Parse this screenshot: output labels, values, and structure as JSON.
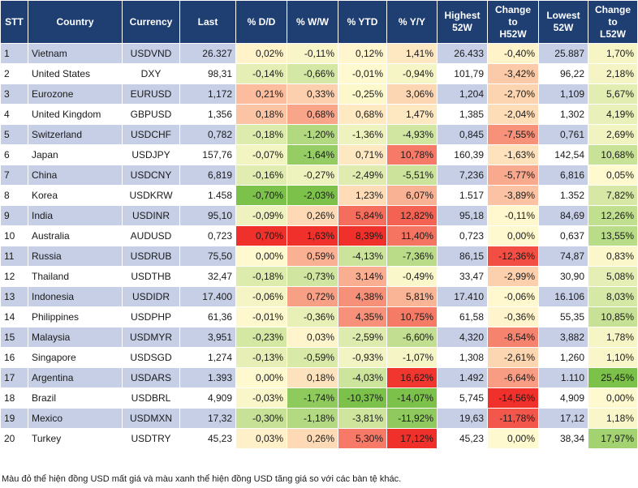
{
  "colors": {
    "header_bg": "#1f3f73",
    "row_blue": "#c6cfe6",
    "row_white": "#ffffff",
    "scale_red_strong": "#f0302a",
    "scale_green_strong": "#7cc24a",
    "scale_yellow": "#fff9cf"
  },
  "columns": [
    {
      "key": "stt",
      "label": "STT"
    },
    {
      "key": "country",
      "label": "Country"
    },
    {
      "key": "currency",
      "label": "Currency"
    },
    {
      "key": "last",
      "label": "Last"
    },
    {
      "key": "dd",
      "label": "% D/D"
    },
    {
      "key": "ww",
      "label": "% W/W"
    },
    {
      "key": "ytd",
      "label": "% YTD"
    },
    {
      "key": "yy",
      "label": "% Y/Y"
    },
    {
      "key": "high",
      "label": "Highest\n52W"
    },
    {
      "key": "chg_h",
      "label": "Change\nto\nH52W"
    },
    {
      "key": "low",
      "label": "Lowest\n52W"
    },
    {
      "key": "chg_l",
      "label": "Change\nto\nL52W"
    }
  ],
  "rows": [
    {
      "stt": "1",
      "country": "Vietnam",
      "currency": "USDVND",
      "last": "26.327",
      "dd": "0,02%",
      "ww": "-0,11%",
      "ytd": "0,12%",
      "yy": "1,41%",
      "high": "26.433",
      "chg_h": "-0,40%",
      "low": "25.887",
      "chg_l": "1,70%"
    },
    {
      "stt": "2",
      "country": "United States",
      "currency": "DXY",
      "last": "98,31",
      "dd": "-0,14%",
      "ww": "-0,66%",
      "ytd": "-0,01%",
      "yy": "-0,94%",
      "high": "101,79",
      "chg_h": "-3,42%",
      "low": "96,22",
      "chg_l": "2,18%"
    },
    {
      "stt": "3",
      "country": "Eurozone",
      "currency": "EURUSD",
      "last": "1,172",
      "dd": "0,21%",
      "ww": "0,33%",
      "ytd": "-0,25%",
      "yy": "3,06%",
      "high": "1,204",
      "chg_h": "-2,70%",
      "low": "1,109",
      "chg_l": "5,67%"
    },
    {
      "stt": "4",
      "country": "United Kingdom",
      "currency": "GBPUSD",
      "last": "1,356",
      "dd": "0,18%",
      "ww": "0,68%",
      "ytd": "0,68%",
      "yy": "1,47%",
      "high": "1,385",
      "chg_h": "-2,04%",
      "low": "1,302",
      "chg_l": "4,19%"
    },
    {
      "stt": "5",
      "country": "Switzerland",
      "currency": "USDCHF",
      "last": "0,782",
      "dd": "-0,18%",
      "ww": "-1,20%",
      "ytd": "-1,36%",
      "yy": "-4,93%",
      "high": "0,845",
      "chg_h": "-7,55%",
      "low": "0,761",
      "chg_l": "2,69%"
    },
    {
      "stt": "6",
      "country": "Japan",
      "currency": "USDJPY",
      "last": "157,76",
      "dd": "-0,07%",
      "ww": "-1,64%",
      "ytd": "0,71%",
      "yy": "10,78%",
      "high": "160,39",
      "chg_h": "-1,63%",
      "low": "142,54",
      "chg_l": "10,68%"
    },
    {
      "stt": "7",
      "country": "China",
      "currency": "USDCNY",
      "last": "6,819",
      "dd": "-0,16%",
      "ww": "-0,27%",
      "ytd": "-2,49%",
      "yy": "-5,51%",
      "high": "7,236",
      "chg_h": "-5,77%",
      "low": "6,816",
      "chg_l": "0,05%"
    },
    {
      "stt": "8",
      "country": "Korea",
      "currency": "USDKRW",
      "last": "1.458",
      "dd": "-0,70%",
      "ww": "-2,03%",
      "ytd": "1,23%",
      "yy": "6,07%",
      "high": "1.517",
      "chg_h": "-3,89%",
      "low": "1.352",
      "chg_l": "7,82%"
    },
    {
      "stt": "9",
      "country": "India",
      "currency": "USDINR",
      "last": "95,10",
      "dd": "-0,09%",
      "ww": "0,26%",
      "ytd": "5,84%",
      "yy": "12,82%",
      "high": "95,18",
      "chg_h": "-0,11%",
      "low": "84,69",
      "chg_l": "12,26%"
    },
    {
      "stt": "10",
      "country": "Australia",
      "currency": "AUDUSD",
      "last": "0,723",
      "dd": "0,70%",
      "ww": "1,63%",
      "ytd": "8,39%",
      "yy": "11,40%",
      "high": "0,723",
      "chg_h": "0,00%",
      "low": "0,637",
      "chg_l": "13,55%"
    },
    {
      "stt": "11",
      "country": "Russia",
      "currency": "USDRUB",
      "last": "75,50",
      "dd": "0,00%",
      "ww": "0,59%",
      "ytd": "-4,13%",
      "yy": "-7,36%",
      "high": "86,15",
      "chg_h": "-12,36%",
      "low": "74,87",
      "chg_l": "0,83%"
    },
    {
      "stt": "12",
      "country": "Thailand",
      "currency": "USDTHB",
      "last": "32,47",
      "dd": "-0,18%",
      "ww": "-0,73%",
      "ytd": "3,14%",
      "yy": "-0,49%",
      "high": "33,47",
      "chg_h": "-2,99%",
      "low": "30,90",
      "chg_l": "5,08%"
    },
    {
      "stt": "13",
      "country": "Indonesia",
      "currency": "USDIDR",
      "last": "17.400",
      "dd": "-0,06%",
      "ww": "0,72%",
      "ytd": "4,38%",
      "yy": "5,81%",
      "high": "17.410",
      "chg_h": "-0,06%",
      "low": "16.106",
      "chg_l": "8,03%"
    },
    {
      "stt": "14",
      "country": "Philippines",
      "currency": "USDPHP",
      "last": "61,36",
      "dd": "-0,01%",
      "ww": "-0,36%",
      "ytd": "4,35%",
      "yy": "10,75%",
      "high": "61,58",
      "chg_h": "-0,36%",
      "low": "55,35",
      "chg_l": "10,85%"
    },
    {
      "stt": "15",
      "country": "Malaysia",
      "currency": "USDMYR",
      "last": "3,951",
      "dd": "-0,23%",
      "ww": "0,03%",
      "ytd": "-2,59%",
      "yy": "-6,60%",
      "high": "4,320",
      "chg_h": "-8,54%",
      "low": "3,882",
      "chg_l": "1,78%"
    },
    {
      "stt": "16",
      "country": "Singapore",
      "currency": "USDSGD",
      "last": "1,274",
      "dd": "-0,13%",
      "ww": "-0,59%",
      "ytd": "-0,93%",
      "yy": "-1,07%",
      "high": "1,308",
      "chg_h": "-2,61%",
      "low": "1,260",
      "chg_l": "1,10%"
    },
    {
      "stt": "17",
      "country": "Argentina",
      "currency": "USDARS",
      "last": "1.393",
      "dd": "0,00%",
      "ww": "0,18%",
      "ytd": "-4,03%",
      "yy": "16,62%",
      "high": "1.492",
      "chg_h": "-6,64%",
      "low": "1.110",
      "chg_l": "25,45%"
    },
    {
      "stt": "18",
      "country": "Brazil",
      "currency": "USDBRL",
      "last": "4,909",
      "dd": "-0,03%",
      "ww": "-1,74%",
      "ytd": "-10,37%",
      "yy": "-14,07%",
      "high": "5,745",
      "chg_h": "-14,56%",
      "low": "4,909",
      "chg_l": "0,00%"
    },
    {
      "stt": "19",
      "country": "Mexico",
      "currency": "USDMXN",
      "last": "17,32",
      "dd": "-0,30%",
      "ww": "-1,18%",
      "ytd": "-3,81%",
      "yy": "-11,92%",
      "high": "19,63",
      "chg_h": "-11,78%",
      "low": "17,12",
      "chg_l": "1,18%"
    },
    {
      "stt": "20",
      "country": "Turkey",
      "currency": "USDTRY",
      "last": "45,23",
      "dd": "0,03%",
      "ww": "0,26%",
      "ytd": "5,30%",
      "yy": "17,12%",
      "high": "45,23",
      "chg_h": "0,00%",
      "low": "38,34",
      "chg_l": "17,97%"
    }
  ],
  "caption": "Màu đỏ thể hiện đồng USD mất giá và màu xanh thể hiện đồng USD tăng giá so với các bàn tệ khác."
}
